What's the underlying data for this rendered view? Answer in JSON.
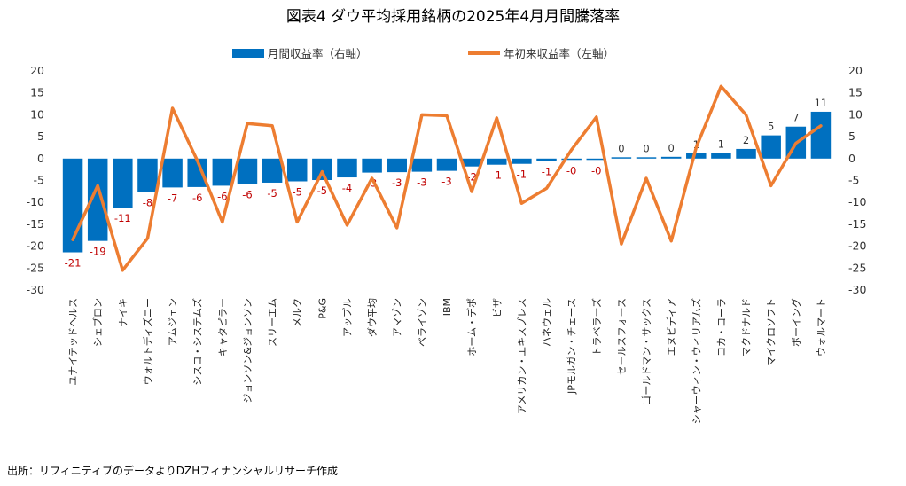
{
  "chart_data": {
    "type": "bar+line",
    "title": "図表4 ダウ平均採用銘柄の2025年4月月間騰落率",
    "categories": [
      "ユナイテッドヘルス",
      "シェブロン",
      "ナイキ",
      "ウォルトディズニー",
      "アムジェン",
      "シスコ・システムズ",
      "キャタピラー",
      "ジョンソン&ジョンソン",
      "スリーエム",
      "メルク",
      "P&G",
      "アップル",
      "ダウ平均",
      "アマゾン",
      "ベライゾン",
      "IBM",
      "ホーム・デポ",
      "ビザ",
      "アメリカン・エキスプレス",
      "ハネウェル",
      "JPモルガン・チェース",
      "トラベラーズ",
      "セールスフォース",
      "ゴールドマン・サックス",
      "エヌビディア",
      "シャーウィン・ウィリアムズ",
      "コカ・コーラ",
      "マクドナルド",
      "マイクロソフト",
      "ボーイング",
      "ウォルマート"
    ],
    "series": [
      {
        "name": "月間収益率（右軸）",
        "type": "bar",
        "axis": "right",
        "color": "#0070c0",
        "values": [
          -21.4,
          -18.8,
          -11.2,
          -7.6,
          -6.6,
          -6.5,
          -6.2,
          -5.8,
          -5.5,
          -5.2,
          -4.9,
          -4.3,
          -3.2,
          -3.1,
          -3.0,
          -2.8,
          -1.8,
          -1.4,
          -1.2,
          -0.5,
          -0.3,
          -0.3,
          0.3,
          0.3,
          0.4,
          1.2,
          1.3,
          2.2,
          5.3,
          7.3,
          10.7
        ],
        "labels": [
          "-21",
          "-19",
          "-11",
          "-8",
          "-7",
          "-6",
          "-6",
          "-6",
          "-5",
          "-5",
          "-5",
          "-4",
          "-3",
          "-3",
          "-3",
          "-3",
          "-2",
          "-1",
          "-1",
          "-1",
          "-0",
          "-0",
          "0",
          "0",
          "0",
          "1",
          "1",
          "2",
          "5",
          "7",
          "11"
        ]
      },
      {
        "name": "年初来収益率（左軸）",
        "type": "line",
        "axis": "left",
        "color": "#ed7d31",
        "values": [
          -18.5,
          -6.2,
          -25.5,
          -18.2,
          11.5,
          -0.5,
          -14.5,
          8.0,
          7.5,
          -14.5,
          -3.0,
          -15.2,
          -4.5,
          -15.8,
          10.0,
          9.8,
          -7.5,
          9.3,
          -10.2,
          -6.8,
          2.0,
          9.5,
          -19.5,
          -4.5,
          -18.8,
          2.5,
          16.5,
          10.0,
          -6.2,
          3.5,
          7.5
        ]
      }
    ],
    "y_left": {
      "min": -30,
      "max": 20,
      "ticks": [
        "20",
        "15",
        "10",
        "5",
        "0",
        "-5",
        "-10",
        "-15",
        "-20",
        "-25",
        "-30"
      ],
      "color": "#000000"
    },
    "y_right": {
      "min": -30,
      "max": 20,
      "ticks": [
        "20",
        "15",
        "10",
        "5",
        "0",
        "-5",
        "-10",
        "-15",
        "-20",
        "-25",
        "-30"
      ],
      "color": "#000000"
    },
    "legend_position": "top-center",
    "grid": false,
    "negative_label_color": "#c00000",
    "positive_label_color": "#333333"
  },
  "source": "出所：リフィニティブのデータよりDZHフィナンシャルリサーチ作成"
}
